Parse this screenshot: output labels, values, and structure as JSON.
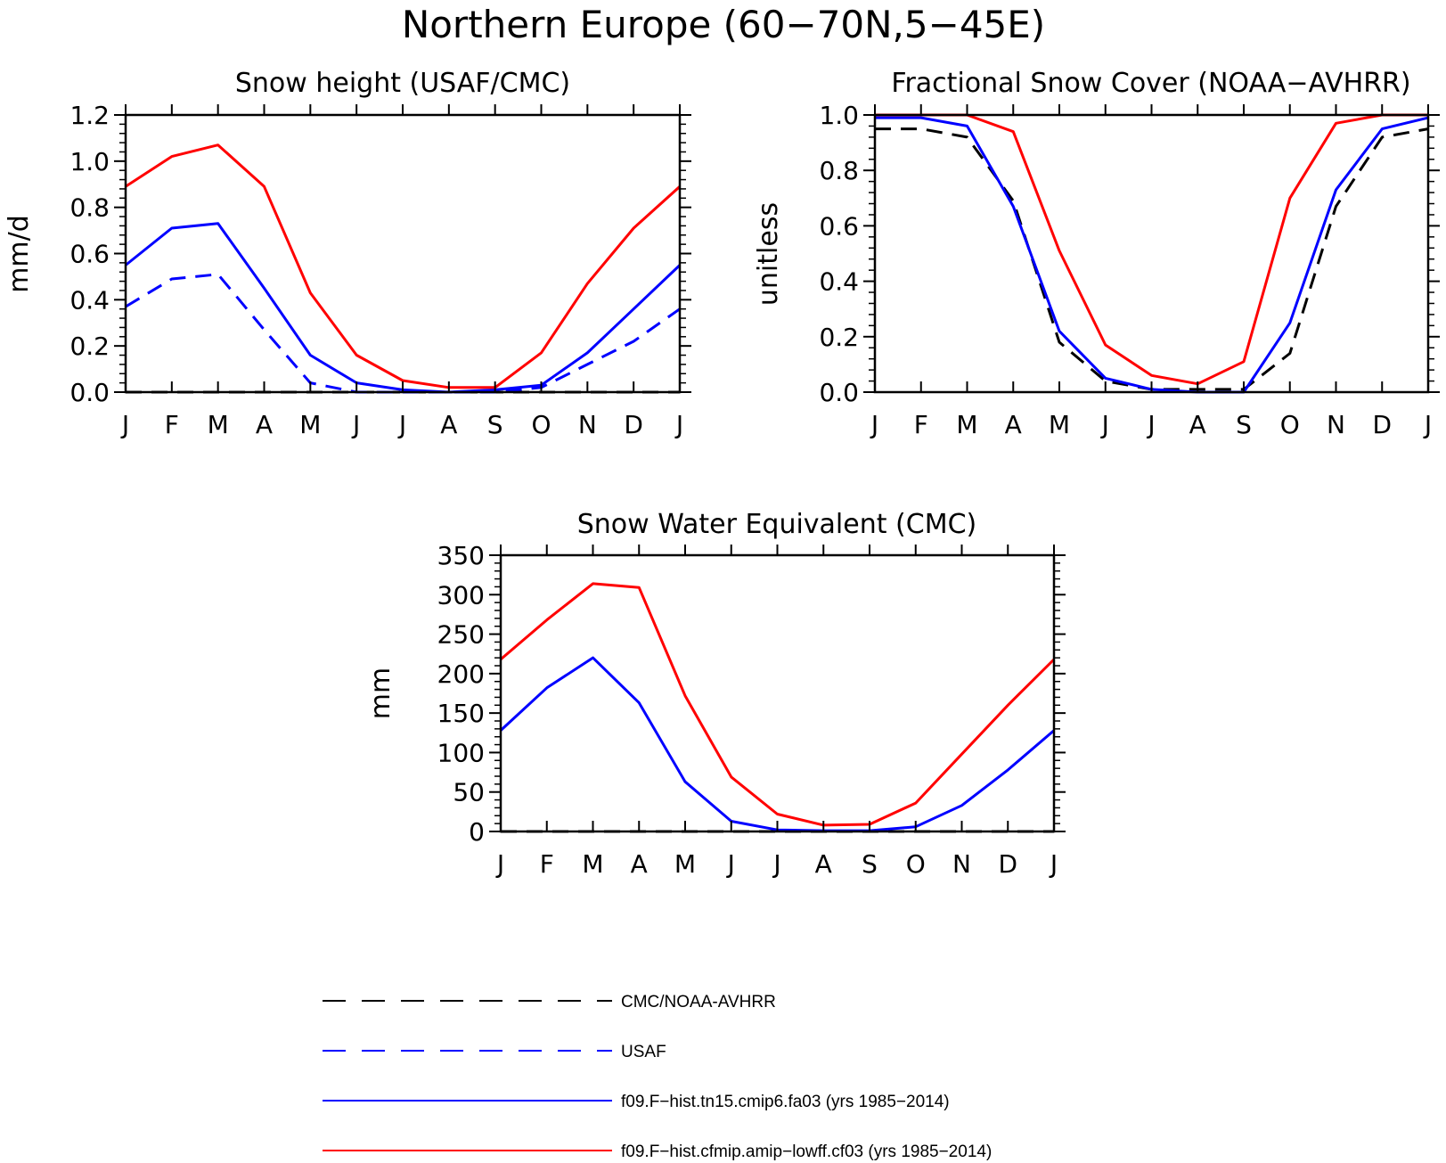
{
  "figure": {
    "title": "Northern Europe (60−70N,5−45E)"
  },
  "series_styles": {
    "obs_black": {
      "color": "#000000",
      "dash": true
    },
    "obs_blue": {
      "color": "#0000ff",
      "dash": true
    },
    "model_tn15": {
      "color": "#0000ff",
      "dash": false
    },
    "model_cf03": {
      "color": "#ff0000",
      "dash": false
    }
  },
  "legend": [
    {
      "label": "CMC/NOAA-AVHRR",
      "style": "obs_black"
    },
    {
      "label": "USAF",
      "style": "obs_blue"
    },
    {
      "label": "f09.F−hist.tn15.cmip6.fa03 (yrs 1985−2014)",
      "style": "model_tn15"
    },
    {
      "label": "f09.F−hist.cfmip.amip−lowff.cf03 (yrs 1985−2014)",
      "style": "model_cf03"
    }
  ],
  "chart_data": [
    {
      "type": "line",
      "title": "Snow height (USAF/CMC)",
      "ylabel": "mm/d",
      "xlabel": "",
      "categories": [
        "J",
        "F",
        "M",
        "A",
        "M",
        "J",
        "J",
        "A",
        "S",
        "O",
        "N",
        "D",
        "J"
      ],
      "ylim": [
        0,
        1.2
      ],
      "yticks": [
        "0.0",
        "0.2",
        "0.4",
        "0.6",
        "0.8",
        "1.0",
        "1.2"
      ],
      "grid": false,
      "series": [
        {
          "style": "obs_black",
          "values": [
            0,
            0,
            0,
            0,
            0,
            0,
            0,
            0,
            0,
            0,
            0,
            0,
            0
          ]
        },
        {
          "style": "obs_blue",
          "values": [
            0.37,
            0.49,
            0.51,
            0.27,
            0.04,
            0.0,
            0.0,
            0.0,
            0.0,
            0.02,
            0.12,
            0.22,
            0.36
          ]
        },
        {
          "style": "model_tn15",
          "values": [
            0.55,
            0.71,
            0.73,
            0.45,
            0.16,
            0.04,
            0.01,
            0.0,
            0.01,
            0.03,
            0.17,
            0.36,
            0.55
          ]
        },
        {
          "style": "model_cf03",
          "values": [
            0.89,
            1.02,
            1.07,
            0.89,
            0.43,
            0.16,
            0.05,
            0.02,
            0.02,
            0.17,
            0.47,
            0.71,
            0.89
          ]
        }
      ]
    },
    {
      "type": "line",
      "title": "Fractional Snow Cover (NOAA−AVHRR)",
      "ylabel": "unitless",
      "xlabel": "",
      "categories": [
        "J",
        "F",
        "M",
        "A",
        "M",
        "J",
        "J",
        "A",
        "S",
        "O",
        "N",
        "D",
        "J"
      ],
      "ylim": [
        0,
        1.0
      ],
      "yticks": [
        "0.0",
        "0.2",
        "0.4",
        "0.6",
        "0.8",
        "1.0"
      ],
      "grid": false,
      "series": [
        {
          "style": "obs_black",
          "values": [
            0.95,
            0.95,
            0.92,
            0.69,
            0.18,
            0.04,
            0.01,
            0.01,
            0.01,
            0.14,
            0.67,
            0.92,
            0.95
          ]
        },
        {
          "style": "model_tn15",
          "values": [
            0.99,
            0.99,
            0.96,
            0.67,
            0.22,
            0.05,
            0.01,
            0.0,
            0.0,
            0.25,
            0.73,
            0.95,
            0.99
          ]
        },
        {
          "style": "model_cf03",
          "values": [
            1.0,
            1.0,
            1.0,
            0.94,
            0.51,
            0.17,
            0.06,
            0.03,
            0.11,
            0.7,
            0.97,
            1.0,
            1.0
          ]
        }
      ]
    },
    {
      "type": "line",
      "title": "Snow Water Equivalent (CMC)",
      "ylabel": "mm",
      "xlabel": "",
      "categories": [
        "J",
        "F",
        "M",
        "A",
        "M",
        "J",
        "J",
        "A",
        "S",
        "O",
        "N",
        "D",
        "J"
      ],
      "ylim": [
        0,
        350
      ],
      "yticks": [
        "0",
        "50",
        "100",
        "150",
        "200",
        "250",
        "300",
        "350"
      ],
      "grid": false,
      "series": [
        {
          "style": "obs_black",
          "values": [
            0,
            0,
            0,
            0,
            0,
            0,
            0,
            0,
            0,
            0,
            0,
            0,
            0
          ]
        },
        {
          "style": "model_tn15",
          "values": [
            128,
            182,
            220,
            163,
            63,
            13,
            2,
            1,
            1,
            6,
            33,
            78,
            128
          ]
        },
        {
          "style": "model_cf03",
          "values": [
            218,
            268,
            314,
            309,
            172,
            69,
            22,
            8,
            9,
            36,
            98,
            160,
            218
          ]
        }
      ]
    }
  ]
}
